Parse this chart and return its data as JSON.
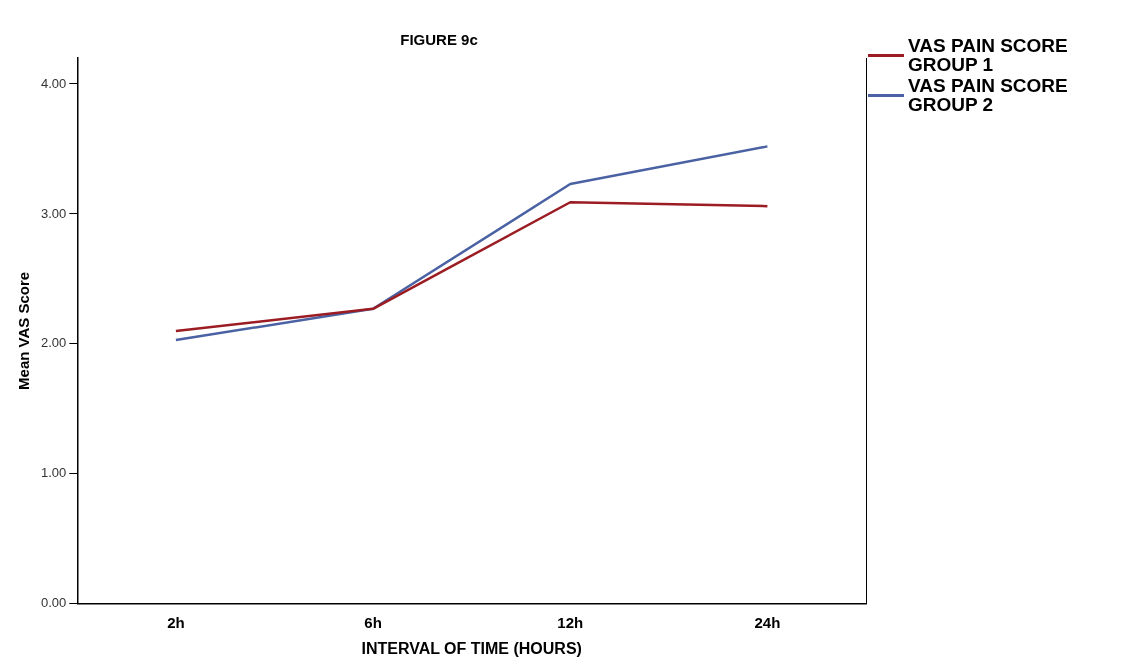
{
  "chart_data": {
    "type": "line",
    "title": "FIGURE 9c",
    "xlabel": "INTERVAL OF TIME (HOURS)",
    "ylabel": "Mean VAS Score",
    "categories": [
      "2h",
      "6h",
      "12h",
      "24h"
    ],
    "series": [
      {
        "name": "VAS PAIN SCORE GROUP 1",
        "color": "#9b1c22",
        "values": [
          2.1,
          2.27,
          3.09,
          3.06
        ]
      },
      {
        "name": "VAS PAIN SCORE GROUP 2",
        "color": "#4a62a4",
        "values": [
          2.03,
          2.27,
          3.23,
          3.52
        ]
      }
    ],
    "ylim": [
      0,
      4.2
    ],
    "yticks": [
      {
        "value": 0,
        "label": "0.00"
      },
      {
        "value": 1,
        "label": "1.00"
      },
      {
        "value": 2,
        "label": "2.00"
      },
      {
        "value": 3,
        "label": "3.00"
      },
      {
        "value": 4,
        "label": "4.00"
      }
    ],
    "grid": false,
    "legend": "right",
    "marker": "none",
    "line_style": "solid"
  }
}
